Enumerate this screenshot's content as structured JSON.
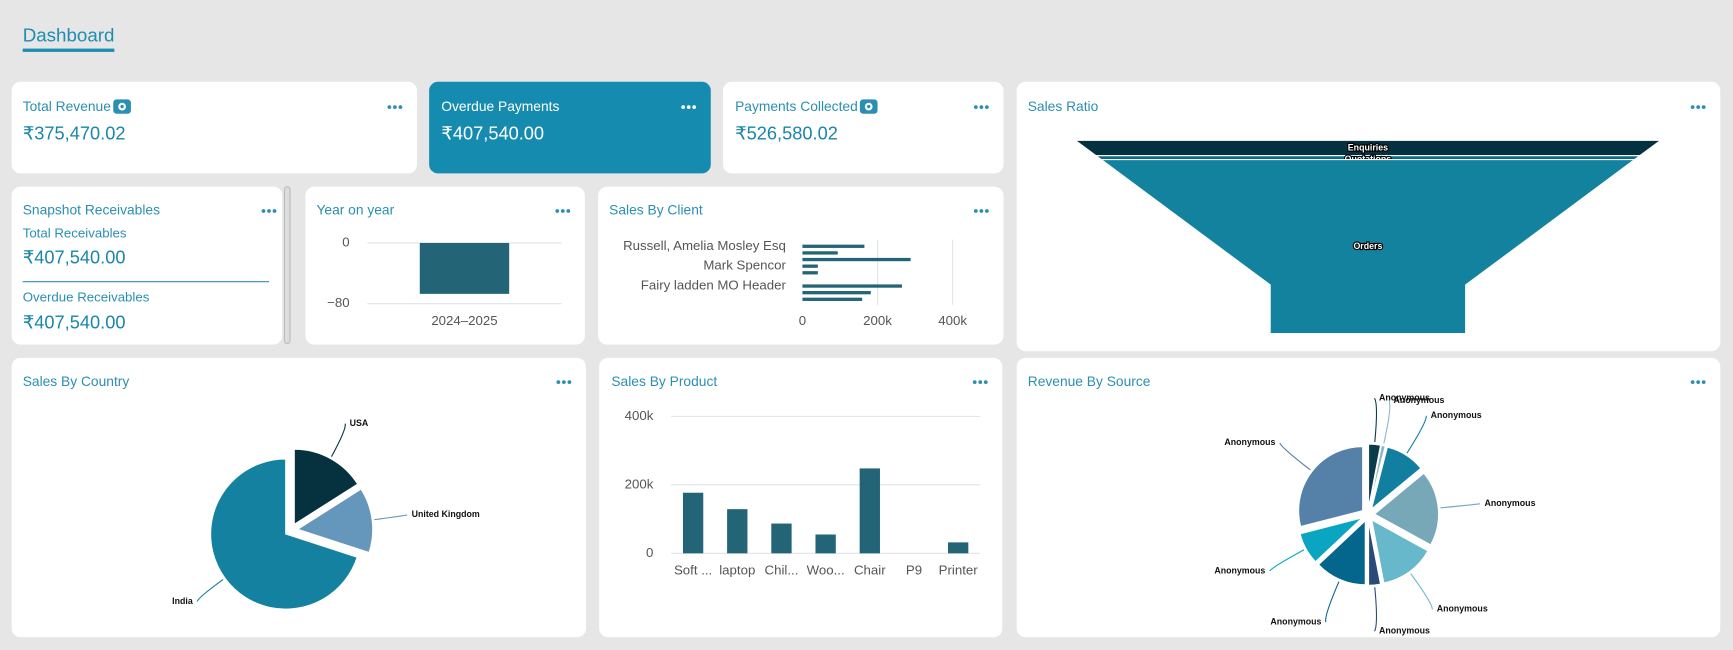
{
  "header": {
    "title": "Dashboard"
  },
  "cards": [
    {
      "title": "Total Revenue",
      "value": "₹375,470.02"
    },
    {
      "title": "Overdue Payments",
      "value": "₹407,540.00"
    },
    {
      "title": "Payments Collected",
      "value": "₹526,580.02"
    }
  ],
  "snapshot": {
    "title": "Snapshot Receivables",
    "items": [
      {
        "label": "Total Receivables",
        "value": "₹407,540.00"
      },
      {
        "label": "Overdue Receivables",
        "value": "₹407,540.00"
      }
    ]
  },
  "chart_data": [
    {
      "type": "bar",
      "title": "Year on year",
      "categories": [
        "2024–2025"
      ],
      "values": [
        -67
      ],
      "color": "#236577",
      "ylim": [
        -80,
        0
      ],
      "yticks": [
        0,
        {
          "value": -80,
          "label": "−80"
        }
      ],
      "grid": true
    },
    {
      "type": "barh",
      "title": "Sales By Client",
      "categories": [
        "Russell, Amelia Mosley Esq",
        null,
        null,
        "Mark Spencor",
        null,
        null,
        "Fairy ladden MO Header",
        null,
        null
      ],
      "values": [
        165000,
        94000,
        288000,
        41000,
        41000,
        0,
        265000,
        182000,
        159000
      ],
      "color": "#236577",
      "xlim": [
        0,
        400000
      ],
      "xticks": [
        0,
        {
          "value": 200000,
          "label": "200k"
        },
        {
          "value": 400000,
          "label": "400k"
        }
      ],
      "grid": true
    },
    {
      "type": "funnel",
      "title": "Sales Ratio",
      "categories": [
        "Enquiries",
        "Quotations",
        "Orders"
      ],
      "values": [
        8,
        2,
        90
      ],
      "colors": [
        "#04313f",
        "#0f6a85",
        "#13829f"
      ]
    },
    {
      "type": "pie",
      "title": "Sales By Country",
      "categories": [
        "USA",
        "United Kingdom",
        "India"
      ],
      "values": [
        16,
        14,
        70
      ],
      "colors": [
        "#06313f",
        "#6597bd",
        "#13819f"
      ]
    },
    {
      "type": "bar",
      "title": "Sales By Product",
      "categories": [
        "Soft ...",
        "laptop",
        "Chil...",
        "Woo...",
        "Chair",
        "P9",
        "Printer"
      ],
      "values": [
        177000,
        129000,
        87000,
        55000,
        248000,
        0,
        32000
      ],
      "color": "#236577",
      "ylim": [
        0,
        400000
      ],
      "yticks": [
        0,
        {
          "value": 200000,
          "label": "200k"
        },
        {
          "value": 400000,
          "label": "400k"
        }
      ],
      "grid": true
    },
    {
      "type": "pie",
      "title": "Revenue By Source",
      "categories": [
        "Anonymous",
        "Anonymous",
        "Anonymous",
        "Anonymous",
        "Anonymous",
        "Anonymous",
        "Anonymous",
        "Anonymous",
        "Anonymous"
      ],
      "values": [
        3,
        1,
        10,
        19,
        14,
        3,
        13,
        8,
        29
      ],
      "colors": [
        "#0a3b4a",
        "#8fb7c9",
        "#137fa0",
        "#77a8b8",
        "#67b8cb",
        "#2a4b7a",
        "#05668d",
        "#0aa5c0",
        "#5580a8"
      ]
    }
  ]
}
